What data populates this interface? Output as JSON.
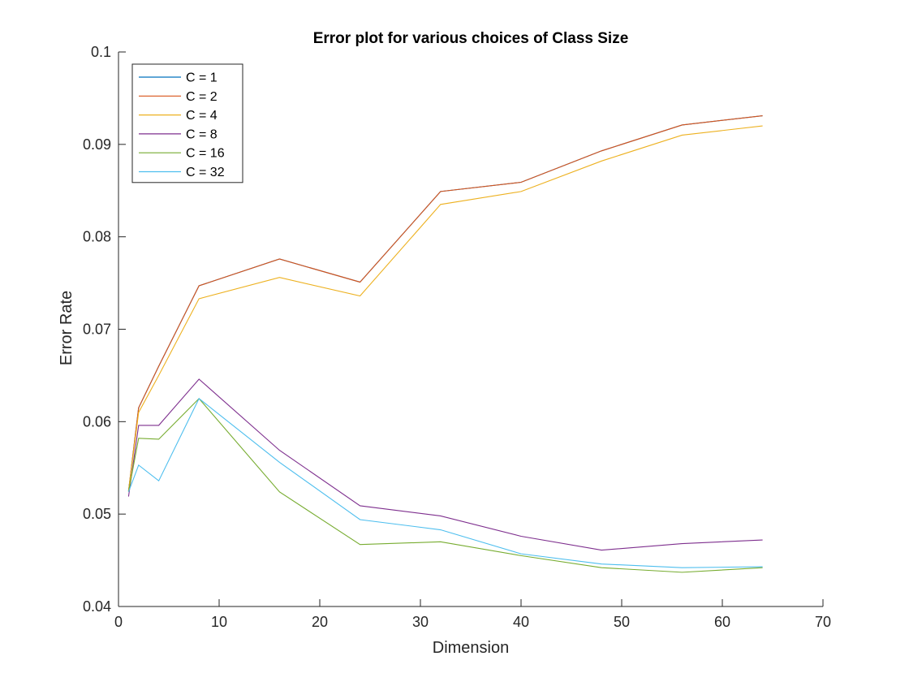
{
  "chart_data": {
    "type": "line",
    "title": "Error plot for various choices of Class Size",
    "xlabel": "Dimension",
    "ylabel": "Error Rate",
    "xlim": [
      0,
      70
    ],
    "ylim": [
      0.04,
      0.1
    ],
    "xticks": [
      0,
      10,
      20,
      30,
      40,
      50,
      60,
      70
    ],
    "yticks": [
      0.04,
      0.05,
      0.06,
      0.07,
      0.08,
      0.09,
      0.1
    ],
    "xtick_labels": [
      "0",
      "10",
      "20",
      "30",
      "40",
      "50",
      "60",
      "70"
    ],
    "ytick_labels": [
      "0.04",
      "0.05",
      "0.06",
      "0.07",
      "0.08",
      "0.09",
      "0.1"
    ],
    "grid": false,
    "legend_position": "top-left",
    "x": [
      1,
      2,
      4,
      8,
      16,
      24,
      32,
      40,
      48,
      56,
      64
    ],
    "series": [
      {
        "name": "C = 1",
        "color": "#0072BD",
        "values": [
          0.0525,
          0.0615,
          0.066,
          0.0747,
          0.0776,
          0.0751,
          0.0849,
          0.0859,
          0.0893,
          0.0921,
          0.0931
        ]
      },
      {
        "name": "C = 2",
        "color": "#D95319",
        "values": [
          0.0525,
          0.0615,
          0.066,
          0.0747,
          0.0776,
          0.0751,
          0.0849,
          0.0859,
          0.0893,
          0.0921,
          0.0931
        ]
      },
      {
        "name": "C = 4",
        "color": "#EDB120",
        "values": [
          0.0525,
          0.061,
          0.065,
          0.0733,
          0.0756,
          0.0736,
          0.0835,
          0.0849,
          0.0882,
          0.091,
          0.092
        ]
      },
      {
        "name": "C = 8",
        "color": "#7E2F8E",
        "values": [
          0.0519,
          0.0596,
          0.0596,
          0.0646,
          0.0569,
          0.0509,
          0.0498,
          0.0476,
          0.0461,
          0.0468,
          0.0472
        ]
      },
      {
        "name": "C = 16",
        "color": "#77AC30",
        "values": [
          0.0524,
          0.0582,
          0.0581,
          0.0625,
          0.0524,
          0.0467,
          0.047,
          0.0455,
          0.0442,
          0.0437,
          0.0442
        ]
      },
      {
        "name": "C = 32",
        "color": "#4DBEEE",
        "values": [
          0.0524,
          0.0553,
          0.0536,
          0.0625,
          0.0556,
          0.0494,
          0.0483,
          0.0457,
          0.0446,
          0.0442,
          0.0443
        ]
      }
    ]
  }
}
